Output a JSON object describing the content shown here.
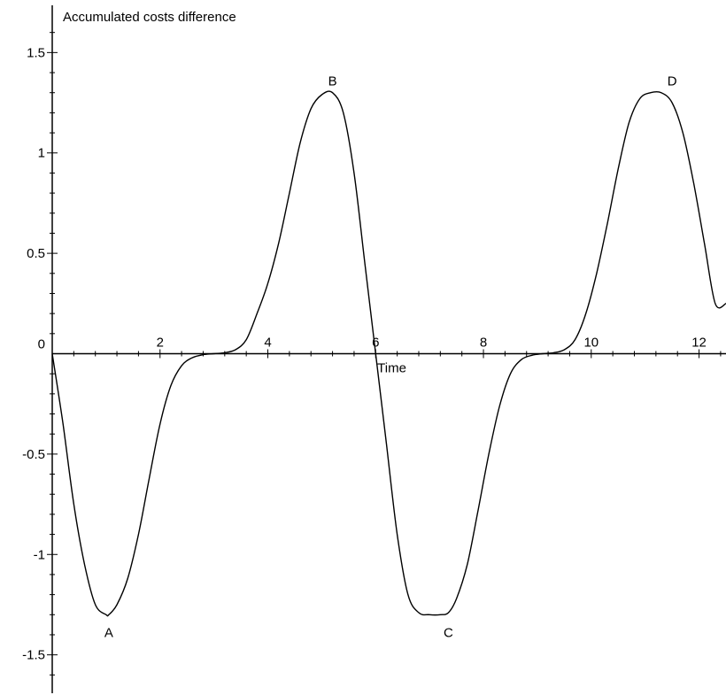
{
  "chart_data": {
    "type": "line",
    "ylabel": "Accumulated costs difference",
    "xlabel": "Time",
    "xlim": [
      0,
      12.5
    ],
    "ylim": [
      -1.7,
      1.7
    ],
    "x_ticks": [
      {
        "value": 2,
        "label": "2"
      },
      {
        "value": 4,
        "label": "4"
      },
      {
        "value": 6,
        "label": "6"
      },
      {
        "value": 8,
        "label": "8"
      },
      {
        "value": 10,
        "label": "10"
      },
      {
        "value": 12,
        "label": "12"
      }
    ],
    "y_ticks": [
      {
        "value": 1.5,
        "label": "1.5"
      },
      {
        "value": 1,
        "label": "1"
      },
      {
        "value": 0.5,
        "label": "0.5"
      },
      {
        "value": -0.5,
        "label": "-0.5"
      },
      {
        "value": -1,
        "label": "-1"
      },
      {
        "value": -1.5,
        "label": "-1.5"
      }
    ],
    "origin_label": "0",
    "series": [
      {
        "x": [
          0,
          0.2,
          0.4,
          0.6,
          0.8,
          1.0,
          1.05,
          1.2,
          1.4,
          1.6,
          1.8,
          2.0,
          2.2,
          2.4,
          2.6,
          2.8,
          3.0,
          3.2,
          3.4,
          3.6,
          3.8,
          4.0,
          4.2,
          4.4,
          4.6,
          4.8,
          5.0,
          5.2,
          5.4,
          5.6,
          5.8,
          6.0,
          6.2,
          6.4,
          6.6,
          6.8,
          7.0,
          7.2,
          7.35,
          7.5,
          7.7,
          7.9,
          8.1,
          8.3,
          8.5,
          8.7,
          8.9,
          9.1,
          9.3,
          9.5,
          9.7,
          9.9,
          10.1,
          10.3,
          10.5,
          10.7,
          10.9,
          11.1,
          11.3,
          11.5,
          11.7,
          11.9,
          12.1,
          12.3,
          12.5
        ],
        "y": [
          0,
          -0.35,
          -0.75,
          -1.05,
          -1.25,
          -1.3,
          -1.3,
          -1.25,
          -1.12,
          -0.9,
          -0.62,
          -0.35,
          -0.16,
          -0.06,
          -0.02,
          -0.005,
          0,
          0.005,
          0.02,
          0.07,
          0.2,
          0.35,
          0.55,
          0.8,
          1.05,
          1.22,
          1.29,
          1.3,
          1.2,
          0.9,
          0.45,
          0,
          -0.45,
          -0.9,
          -1.2,
          -1.29,
          -1.3,
          -1.3,
          -1.29,
          -1.22,
          -1.05,
          -0.78,
          -0.5,
          -0.26,
          -0.1,
          -0.03,
          -0.008,
          0,
          0.005,
          0.02,
          0.07,
          0.2,
          0.4,
          0.65,
          0.92,
          1.15,
          1.27,
          1.3,
          1.3,
          1.25,
          1.1,
          0.85,
          0.55,
          0.25,
          0.25
        ]
      }
    ],
    "annotations": [
      {
        "label": "A",
        "x": 1.05,
        "y": -1.3,
        "position": "below"
      },
      {
        "label": "B",
        "x": 5.2,
        "y": 1.3,
        "position": "above"
      },
      {
        "label": "C",
        "x": 7.35,
        "y": -1.3,
        "position": "below"
      },
      {
        "label": "D",
        "x": 11.5,
        "y": 1.3,
        "position": "above"
      }
    ],
    "grid": false,
    "colors": {
      "line": "#000000",
      "axis": "#000000"
    }
  }
}
